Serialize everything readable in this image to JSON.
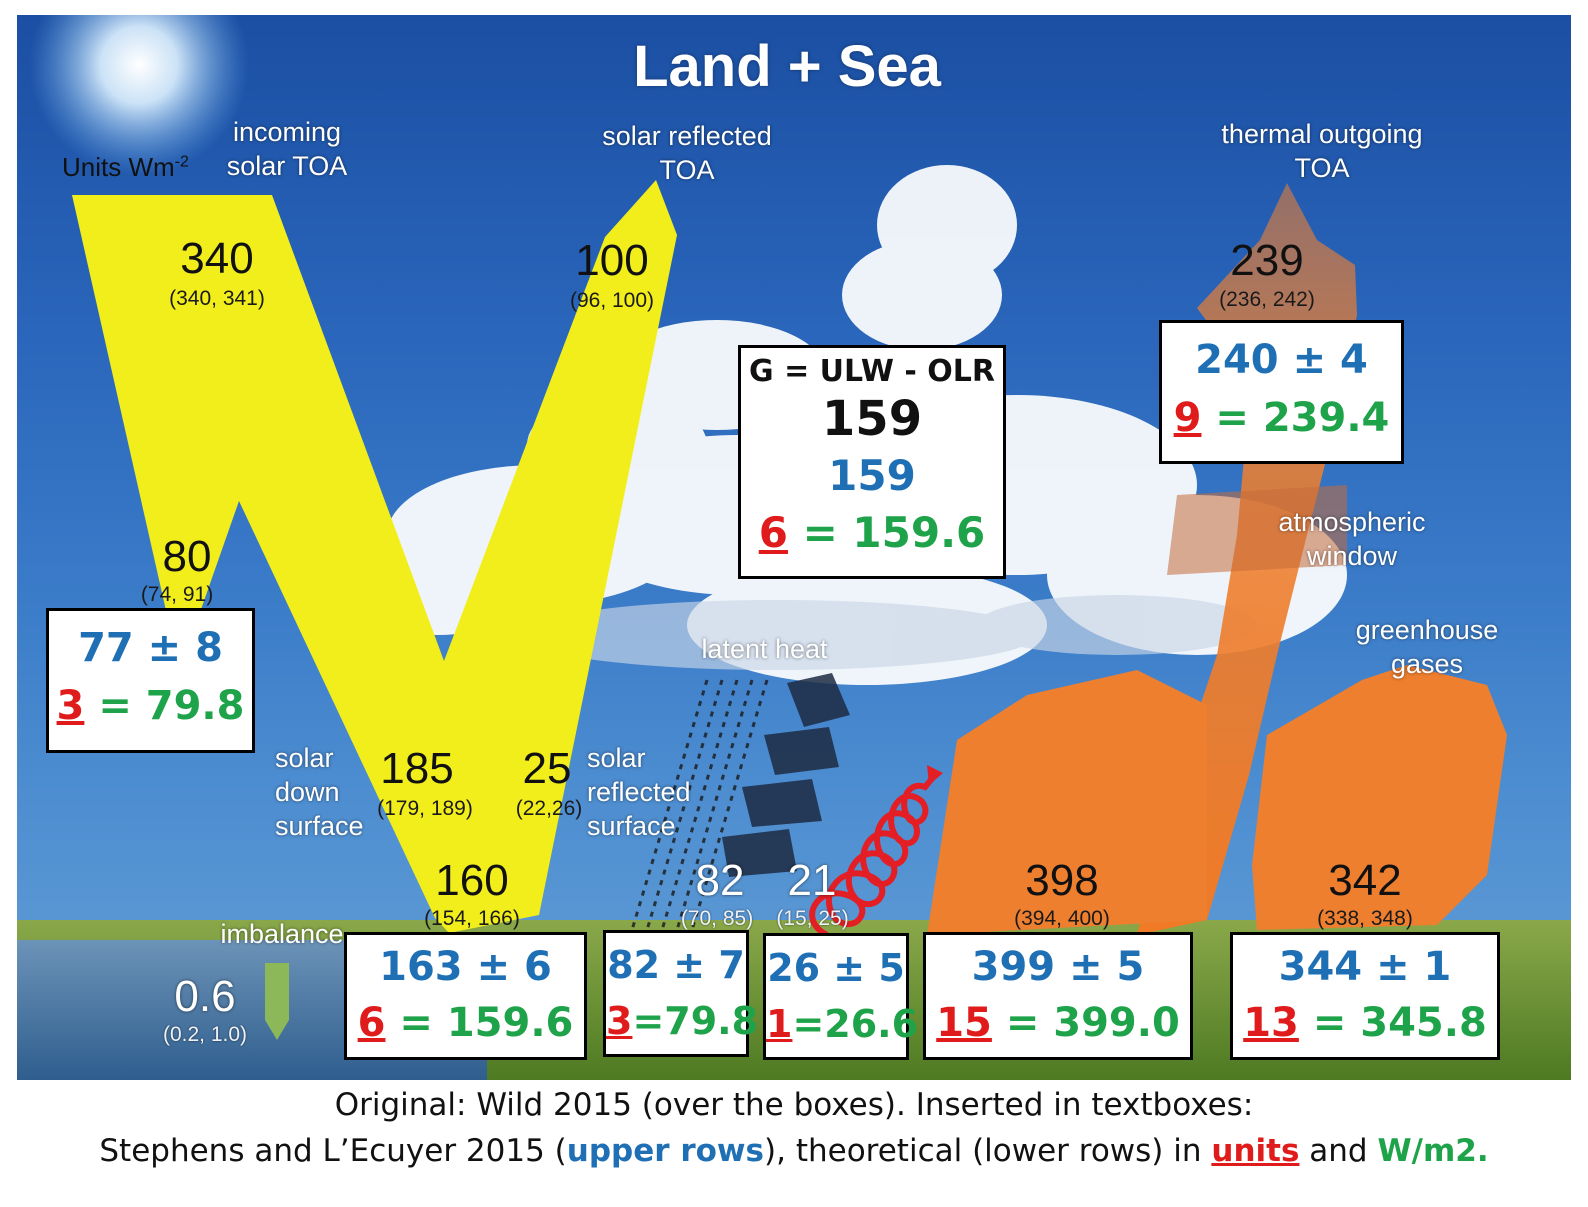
{
  "title": "Land + Sea",
  "units": {
    "text": "Units Wm",
    "exp": "-2"
  },
  "labels": {
    "incoming_solar_toa": "incoming\nsolar TOA",
    "solar_reflected_toa": "solar reflected\nTOA",
    "thermal_outgoing_toa": "thermal outgoing\nTOA",
    "atmospheric_window": "atmospheric\nwindow",
    "greenhouse_gases": "greenhouse\ngases",
    "latent_heat": "latent heat",
    "solar_down_surface": "solar\ndown\nsurface",
    "solar_reflected_surface": "solar\nreflected\nsurface",
    "imbalance": "imbalance"
  },
  "values": {
    "incoming": {
      "value": "340",
      "range": "(340, 341)"
    },
    "reflected_toa": {
      "value": "100",
      "range": "(96, 100)"
    },
    "outgoing_toa": {
      "value": "239",
      "range": "(236, 242)"
    },
    "absorbed_atm": {
      "value": "80",
      "range": "(74, 91)"
    },
    "solar_down": {
      "value": "185",
      "range": "(179, 189)"
    },
    "reflected_surface": {
      "value": "25",
      "range": "(22,26)"
    },
    "absorbed_surface": {
      "value": "160",
      "range": "(154, 166)"
    },
    "latent": {
      "value": "82",
      "range": "(70, 85)"
    },
    "sensible": {
      "value": "21",
      "range": "(15, 25)"
    },
    "upward_lw": {
      "value": "398",
      "range": "(394, 400)"
    },
    "back_radiation": {
      "value": "342",
      "range": "(338, 348)"
    },
    "imbalance": {
      "value": "0.6",
      "range": "(0.2, 1.0)"
    }
  },
  "boxes": {
    "g": {
      "header": "G = ULW - OLR",
      "black": "159",
      "upper": "159",
      "lower_unit": "6",
      "lower_rest": " = 159.6"
    },
    "olr": {
      "upper": "240 ± 4",
      "lower_unit": "9",
      "lower_rest": " = 239.4"
    },
    "atm": {
      "upper": "77 ± 8",
      "lower_unit": "3",
      "lower_rest": " = 79.8"
    },
    "surface": {
      "upper": "163 ± 6",
      "lower_unit": "6",
      "lower_rest": " = 159.6"
    },
    "latent": {
      "upper": "82 ± 7",
      "lower_unit": "3",
      "lower_rest": "=79.8"
    },
    "sensible": {
      "upper": "26 ± 5",
      "lower_unit": "1",
      "lower_rest": "=26.6"
    },
    "ulw": {
      "upper": "399 ± 5",
      "lower_unit": "15",
      "lower_rest": " = 399.0"
    },
    "dlw": {
      "upper": "344 ± 1",
      "lower_unit": "13",
      "lower_rest": " = 345.8"
    }
  },
  "caption": {
    "line1": "Original: Wild 2015 (over the boxes). Inserted in textboxes:",
    "line2_a": "Stephens and L’Ecuyer 2015 (",
    "line2_b": "upper rows",
    "line2_c": "), theoretical (lower rows) in ",
    "line2_d": "units",
    "line2_e": " and ",
    "line2_f": "W/m2",
    "line2_g": "."
  },
  "colors": {
    "sky": "#2a66bb",
    "solar": "#f2ee1c",
    "thermal": "#ee7f2f",
    "upper_text": "#1f6fb5",
    "lower_text": "#1fa34a",
    "units_text": "#e01b1b"
  }
}
